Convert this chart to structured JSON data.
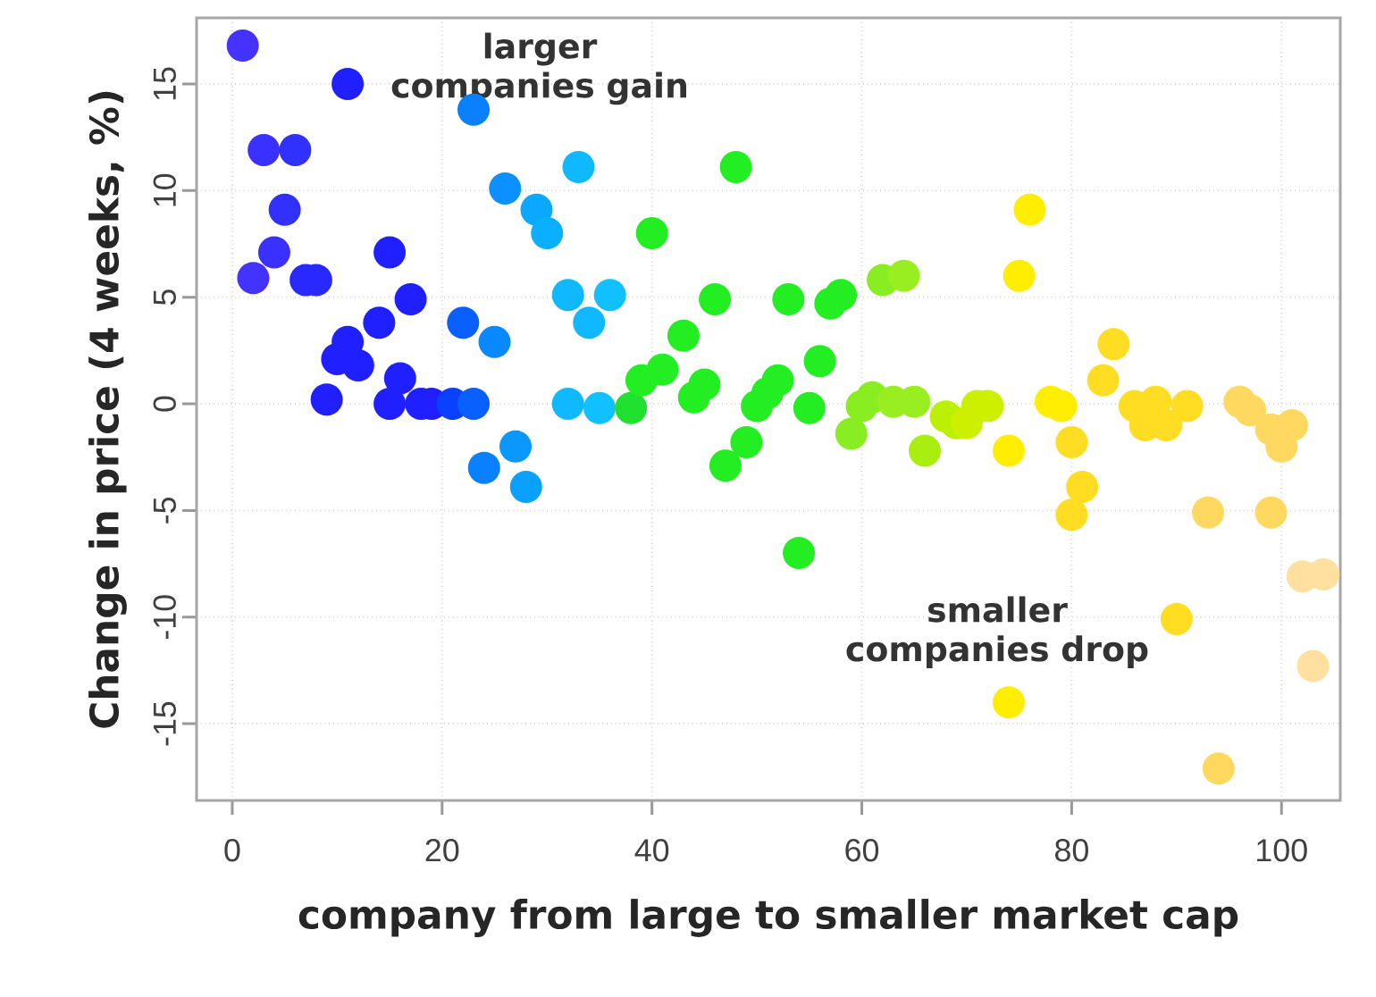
{
  "chart_data": {
    "type": "scatter",
    "xlabel": "company from large to smaller market cap",
    "ylabel": "Change in price (4 weeks, %)",
    "xlim": [
      -3.4,
      105.6
    ],
    "ylim": [
      -18.6,
      18.1
    ],
    "xticks": [
      0,
      20,
      40,
      60,
      80,
      100
    ],
    "yticks": [
      -15,
      -10,
      -5,
      0,
      5,
      10,
      15
    ],
    "grid": true,
    "marker": "circle",
    "annotations": [
      "larger companies gain",
      "smaller companies drop"
    ],
    "x": [
      1,
      2,
      3,
      4,
      5,
      6,
      7,
      8,
      9,
      10,
      11,
      11,
      12,
      14,
      15,
      15,
      16,
      17,
      18,
      19,
      21,
      22,
      23,
      23,
      24,
      25,
      26,
      27,
      28,
      29,
      30,
      32,
      32,
      33,
      34,
      35,
      36,
      38,
      39,
      40,
      41,
      43,
      44,
      45,
      46,
      47,
      48,
      49,
      50,
      51,
      52,
      53,
      54,
      55,
      56,
      57,
      58,
      59,
      60,
      61,
      62,
      63,
      64,
      65,
      66,
      68,
      69,
      70,
      71,
      72,
      74,
      74,
      75,
      76,
      78,
      79,
      80,
      80,
      81,
      83,
      84,
      86,
      87,
      88,
      89,
      90,
      91,
      93,
      94,
      96,
      97,
      99,
      99,
      100,
      101,
      102,
      103,
      104
    ],
    "values": [
      16.8,
      5.9,
      11.9,
      7.1,
      9.1,
      11.9,
      5.8,
      5.8,
      0.2,
      2.1,
      15.0,
      2.9,
      1.8,
      3.8,
      7.1,
      0,
      1.2,
      4.9,
      0,
      0,
      0,
      3.8,
      0,
      13.8,
      -3.0,
      2.9,
      10.1,
      -2.0,
      -3.9,
      9.1,
      8.0,
      0,
      5.1,
      11.1,
      3.8,
      -0.2,
      5.1,
      -0.2,
      1.1,
      8.0,
      1.6,
      3.2,
      0.3,
      0.9,
      4.9,
      -2.9,
      11.1,
      -1.8,
      -0.1,
      0.5,
      1.1,
      4.9,
      -7.0,
      -0.2,
      2.0,
      4.7,
      5.1,
      -1.4,
      -0.1,
      0.3,
      5.8,
      0.1,
      6.0,
      0.1,
      -2.2,
      -0.6,
      -0.9,
      -0.9,
      -0.1,
      -0.1,
      -2.2,
      -14.0,
      6.0,
      9.1,
      0.1,
      -0.1,
      -1.8,
      -5.2,
      -3.9,
      1.1,
      2.8,
      -0.1,
      -1.0,
      0.1,
      -1.0,
      -10.1,
      -0.1,
      -5.1,
      -17.1,
      0.1,
      -0.3,
      -1.2,
      -5.1,
      -2.0,
      -1.0,
      -8.1,
      -12.3,
      -8.0
    ],
    "colors": [
      "#4433ff",
      "#4433ff",
      "#3a30ff",
      "#3a30ff",
      "#3030ff",
      "#3030ff",
      "#2828ff",
      "#2828ff",
      "#1f1fff",
      "#1f1fff",
      "#1f1fff",
      "#1f1fff",
      "#1f1fff",
      "#1f1fff",
      "#1f1fff",
      "#1f1fff",
      "#1f1fff",
      "#1f1fff",
      "#1f1fff",
      "#1f1fff",
      "#0a40ff",
      "#0a60ff",
      "#0a60ff",
      "#0a80ff",
      "#0a80ff",
      "#0a88ff",
      "#0a90ff",
      "#0a98ff",
      "#0aa0ff",
      "#0aa8ff",
      "#0ab0ff",
      "#10b8ff",
      "#10b8ff",
      "#10b8ff",
      "#10b8ff",
      "#10c0ff",
      "#10c0ff",
      "#20e030",
      "#22ee22",
      "#22ee22",
      "#22ee22",
      "#22ee22",
      "#22ee22",
      "#22ee22",
      "#22ee22",
      "#22ee22",
      "#22ee22",
      "#22ee22",
      "#22ee22",
      "#22ee22",
      "#22ee22",
      "#22ee22",
      "#22ee22",
      "#22ee22",
      "#22ee22",
      "#22ee22",
      "#22ee22",
      "#88ee22",
      "#88ee22",
      "#88ee22",
      "#88ee22",
      "#99ee22",
      "#99ee22",
      "#99ee22",
      "#aaee11",
      "#bbf000",
      "#bbf000",
      "#ccf000",
      "#ccf000",
      "#ccf000",
      "#ffee00",
      "#ffee00",
      "#ffee00",
      "#ffee00",
      "#ffee00",
      "#ffee00",
      "#ffdd22",
      "#ffdd22",
      "#ffdd22",
      "#ffdd22",
      "#ffdd22",
      "#ffdd22",
      "#ffdd22",
      "#ffdd22",
      "#ffdd22",
      "#ffdd22",
      "#ffdd22",
      "#ffd860",
      "#ffd860",
      "#ffd860",
      "#ffd860",
      "#ffd860",
      "#ffd860",
      "#ffd860",
      "#ffd860",
      "#ffe0a0",
      "#ffe0a0",
      "#ffe0a0"
    ]
  }
}
